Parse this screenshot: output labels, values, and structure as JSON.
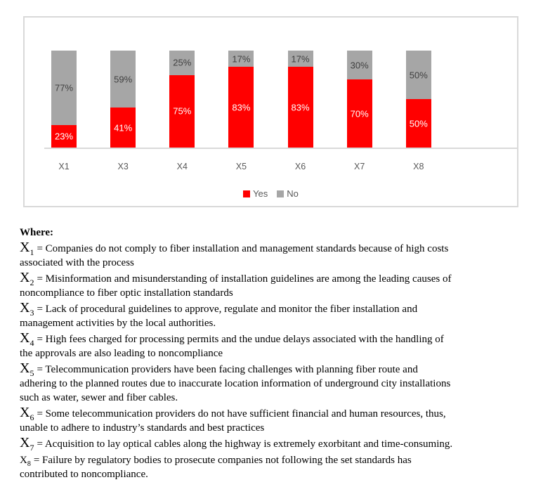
{
  "chart_data": {
    "type": "bar",
    "stacked": true,
    "units": "percent",
    "categories": [
      "X1",
      "X3",
      "X4",
      "X5",
      "X6",
      "X7",
      "X8"
    ],
    "series": [
      {
        "name": "Yes",
        "color": "#ff0000",
        "label_color": "#ffffff",
        "values": [
          23,
          41,
          75,
          83,
          83,
          70,
          50
        ]
      },
      {
        "name": "No",
        "color": "#a6a6a6",
        "label_color": "#404040",
        "values": [
          77,
          59,
          25,
          17,
          17,
          30,
          50
        ]
      }
    ],
    "data_labels": "inside-center",
    "label_suffix": "%",
    "legend_position": "bottom-center",
    "axis_line_color": "#d9d9d9",
    "x_label_color": "#595959",
    "grid": false,
    "ylim": [
      0,
      100
    ],
    "empty_trailing_slot": true
  },
  "caption": {
    "heading": "Where:",
    "definitions": [
      {
        "var": "X",
        "sub": "1",
        "large_var": true,
        "text": "= Companies do not comply to fiber installation and management standards because of high costs\nassociated with the process"
      },
      {
        "var": "X",
        "sub": "2",
        "large_var": true,
        "text": "= Misinformation and misunderstanding of installation guidelines are among the leading causes of\nnoncompliance to fiber optic installation standards"
      },
      {
        "var": "X",
        "sub": "3",
        "large_var": true,
        "text": "= Lack of procedural guidelines to approve, regulate and monitor the fiber installation and\nmanagement activities by the local authorities."
      },
      {
        "var": "X",
        "sub": "4",
        "large_var": true,
        "text": "= High fees charged for processing permits and the undue delays associated with the handling of\nthe approvals are also leading to noncompliance"
      },
      {
        "var": "X",
        "sub": "5",
        "large_var": true,
        "text": "= Telecommunication providers have been facing challenges with planning fiber route and\nadhering to the planned routes due to inaccurate location information of underground city installations\nsuch as water, sewer and fiber cables."
      },
      {
        "var": "X",
        "sub": "6",
        "large_var": true,
        "text": "= Some telecommunication providers do not have sufficient financial and human resources, thus,\nunable to adhere to industry’s standards and best practices"
      },
      {
        "var": "X",
        "sub": "7",
        "large_var": true,
        "text": "= Acquisition to lay optical cables along the highway is extremely exorbitant and time-consuming."
      },
      {
        "var": "X",
        "sub": "8",
        "large_var": false,
        "text": "= Failure by regulatory bodies to prosecute companies not following the set standards has\ncontributed to noncompliance."
      }
    ]
  }
}
